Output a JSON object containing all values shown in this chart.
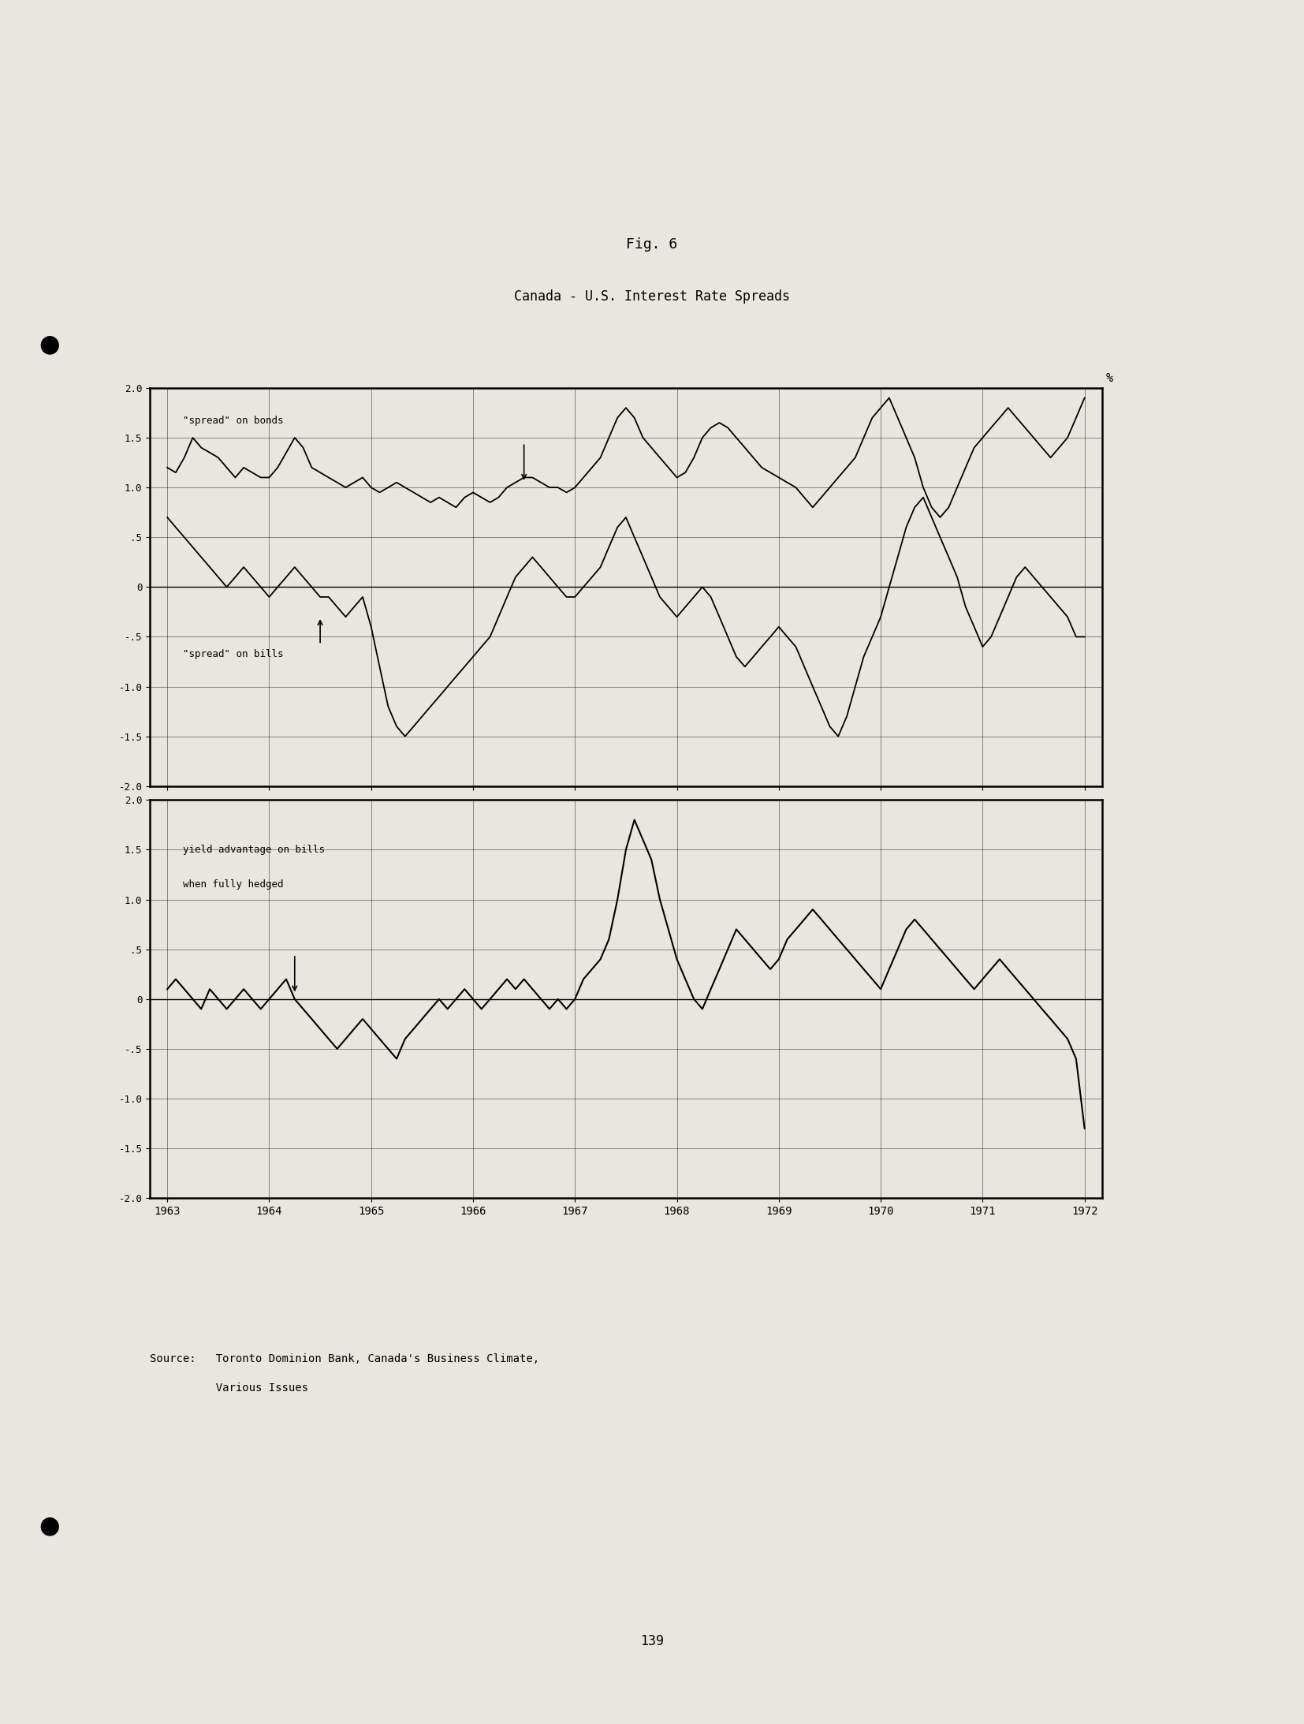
{
  "fig_label": "Fig. 6",
  "title": "Canada - U.S. Interest Rate Spreads",
  "source_line1": "Source:   Toronto Dominion Bank, Canada's Business Climate,",
  "source_line2": "          Various Issues",
  "page_number": "139",
  "background_color": "#e8e6df",
  "x_tick_labels": [
    "1963",
    "1964",
    "1965",
    "1966",
    "1967",
    "1968",
    "1969",
    "1970",
    "1971",
    "1972"
  ],
  "ytick_labels": [
    "2.0",
    "1.5",
    "1.0",
    ".5",
    "0",
    "-.5",
    "-1.0",
    "-1.5",
    "-2.0"
  ],
  "ytick_vals": [
    2.0,
    1.5,
    1.0,
    0.5,
    0.0,
    -0.5,
    -1.0,
    -1.5,
    -2.0
  ],
  "percent_label": "%",
  "label_bonds": "\"spread\" on bonds",
  "label_bills": "\"spread\" on bills",
  "label_hedged_line1": "yield advantage on bills",
  "label_hedged_line2": "when fully hedged",
  "bonds_x": [
    1963.0,
    1963.083,
    1963.167,
    1963.25,
    1963.333,
    1963.417,
    1963.5,
    1963.583,
    1963.667,
    1963.75,
    1963.833,
    1963.917,
    1964.0,
    1964.083,
    1964.167,
    1964.25,
    1964.333,
    1964.417,
    1964.5,
    1964.583,
    1964.667,
    1964.75,
    1964.833,
    1964.917,
    1965.0,
    1965.083,
    1965.167,
    1965.25,
    1965.333,
    1965.417,
    1965.5,
    1965.583,
    1965.667,
    1965.75,
    1965.833,
    1965.917,
    1966.0,
    1966.083,
    1966.167,
    1966.25,
    1966.333,
    1966.417,
    1966.5,
    1966.583,
    1966.667,
    1966.75,
    1966.833,
    1966.917,
    1967.0,
    1967.083,
    1967.167,
    1967.25,
    1967.333,
    1967.417,
    1967.5,
    1967.583,
    1967.667,
    1967.75,
    1967.833,
    1967.917,
    1968.0,
    1968.083,
    1968.167,
    1968.25,
    1968.333,
    1968.417,
    1968.5,
    1968.583,
    1968.667,
    1968.75,
    1968.833,
    1968.917,
    1969.0,
    1969.083,
    1969.167,
    1969.25,
    1969.333,
    1969.417,
    1969.5,
    1969.583,
    1969.667,
    1969.75,
    1969.833,
    1969.917,
    1970.0,
    1970.083,
    1970.167,
    1970.25,
    1970.333,
    1970.417,
    1970.5,
    1970.583,
    1970.667,
    1970.75,
    1970.833,
    1970.917,
    1971.0,
    1971.083,
    1971.167,
    1971.25,
    1971.333,
    1971.417,
    1971.5,
    1971.583,
    1971.667,
    1971.75,
    1971.833,
    1971.917,
    1972.0
  ],
  "bonds_y": [
    1.2,
    1.15,
    1.3,
    1.5,
    1.4,
    1.35,
    1.3,
    1.2,
    1.1,
    1.2,
    1.15,
    1.1,
    1.1,
    1.2,
    1.35,
    1.5,
    1.4,
    1.2,
    1.15,
    1.1,
    1.05,
    1.0,
    1.05,
    1.1,
    1.0,
    0.95,
    1.0,
    1.05,
    1.0,
    0.95,
    0.9,
    0.85,
    0.9,
    0.85,
    0.8,
    0.9,
    0.95,
    0.9,
    0.85,
    0.9,
    1.0,
    1.05,
    1.1,
    1.1,
    1.05,
    1.0,
    1.0,
    0.95,
    1.0,
    1.1,
    1.2,
    1.3,
    1.5,
    1.7,
    1.8,
    1.7,
    1.5,
    1.4,
    1.3,
    1.2,
    1.1,
    1.15,
    1.3,
    1.5,
    1.6,
    1.65,
    1.6,
    1.5,
    1.4,
    1.3,
    1.2,
    1.15,
    1.1,
    1.05,
    1.0,
    0.9,
    0.8,
    0.9,
    1.0,
    1.1,
    1.2,
    1.3,
    1.5,
    1.7,
    1.8,
    1.9,
    1.7,
    1.5,
    1.3,
    1.0,
    0.8,
    0.7,
    0.8,
    1.0,
    1.2,
    1.4,
    1.5,
    1.6,
    1.7,
    1.8,
    1.7,
    1.6,
    1.5,
    1.4,
    1.3,
    1.4,
    1.5,
    1.7,
    1.9
  ],
  "bills_x": [
    1963.0,
    1963.083,
    1963.167,
    1963.25,
    1963.333,
    1963.417,
    1963.5,
    1963.583,
    1963.667,
    1963.75,
    1963.833,
    1963.917,
    1964.0,
    1964.083,
    1964.167,
    1964.25,
    1964.333,
    1964.417,
    1964.5,
    1964.583,
    1964.667,
    1964.75,
    1964.833,
    1964.917,
    1965.0,
    1965.083,
    1965.167,
    1965.25,
    1965.333,
    1965.417,
    1965.5,
    1965.583,
    1965.667,
    1965.75,
    1965.833,
    1965.917,
    1966.0,
    1966.083,
    1966.167,
    1966.25,
    1966.333,
    1966.417,
    1966.5,
    1966.583,
    1966.667,
    1966.75,
    1966.833,
    1966.917,
    1967.0,
    1967.083,
    1967.167,
    1967.25,
    1967.333,
    1967.417,
    1967.5,
    1967.583,
    1967.667,
    1967.75,
    1967.833,
    1967.917,
    1968.0,
    1968.083,
    1968.167,
    1968.25,
    1968.333,
    1968.417,
    1968.5,
    1968.583,
    1968.667,
    1968.75,
    1968.833,
    1968.917,
    1969.0,
    1969.083,
    1969.167,
    1969.25,
    1969.333,
    1969.417,
    1969.5,
    1969.583,
    1969.667,
    1969.75,
    1969.833,
    1969.917,
    1970.0,
    1970.083,
    1970.167,
    1970.25,
    1970.333,
    1970.417,
    1970.5,
    1970.583,
    1970.667,
    1970.75,
    1970.833,
    1970.917,
    1971.0,
    1971.083,
    1971.167,
    1971.25,
    1971.333,
    1971.417,
    1971.5,
    1971.583,
    1971.667,
    1971.75,
    1971.833,
    1971.917,
    1972.0
  ],
  "bills_y": [
    0.7,
    0.6,
    0.5,
    0.4,
    0.3,
    0.2,
    0.1,
    0.0,
    0.1,
    0.2,
    0.1,
    0.0,
    -0.1,
    0.0,
    0.1,
    0.2,
    0.1,
    0.0,
    -0.1,
    -0.1,
    -0.2,
    -0.3,
    -0.2,
    -0.1,
    -0.4,
    -0.8,
    -1.2,
    -1.4,
    -1.5,
    -1.4,
    -1.3,
    -1.2,
    -1.1,
    -1.0,
    -0.9,
    -0.8,
    -0.7,
    -0.6,
    -0.5,
    -0.3,
    -0.1,
    0.1,
    0.2,
    0.3,
    0.2,
    0.1,
    0.0,
    -0.1,
    -0.1,
    0.0,
    0.1,
    0.2,
    0.4,
    0.6,
    0.7,
    0.5,
    0.3,
    0.1,
    -0.1,
    -0.2,
    -0.3,
    -0.2,
    -0.1,
    0.0,
    -0.1,
    -0.3,
    -0.5,
    -0.7,
    -0.8,
    -0.7,
    -0.6,
    -0.5,
    -0.4,
    -0.5,
    -0.6,
    -0.8,
    -1.0,
    -1.2,
    -1.4,
    -1.5,
    -1.3,
    -1.0,
    -0.7,
    -0.5,
    -0.3,
    0.0,
    0.3,
    0.6,
    0.8,
    0.9,
    0.7,
    0.5,
    0.3,
    0.1,
    -0.2,
    -0.4,
    -0.6,
    -0.5,
    -0.3,
    -0.1,
    0.1,
    0.2,
    0.1,
    0.0,
    -0.1,
    -0.2,
    -0.3,
    -0.5,
    -0.5
  ],
  "hedged_x": [
    1963.0,
    1963.083,
    1963.167,
    1963.25,
    1963.333,
    1963.417,
    1963.5,
    1963.583,
    1963.667,
    1963.75,
    1963.833,
    1963.917,
    1964.0,
    1964.083,
    1964.167,
    1964.25,
    1964.333,
    1964.417,
    1964.5,
    1964.583,
    1964.667,
    1964.75,
    1964.833,
    1964.917,
    1965.0,
    1965.083,
    1965.167,
    1965.25,
    1965.333,
    1965.417,
    1965.5,
    1965.583,
    1965.667,
    1965.75,
    1965.833,
    1965.917,
    1966.0,
    1966.083,
    1966.167,
    1966.25,
    1966.333,
    1966.417,
    1966.5,
    1966.583,
    1966.667,
    1966.75,
    1966.833,
    1966.917,
    1967.0,
    1967.083,
    1967.167,
    1967.25,
    1967.333,
    1967.417,
    1967.5,
    1967.583,
    1967.667,
    1967.75,
    1967.833,
    1967.917,
    1968.0,
    1968.083,
    1968.167,
    1968.25,
    1968.333,
    1968.417,
    1968.5,
    1968.583,
    1968.667,
    1968.75,
    1968.833,
    1968.917,
    1969.0,
    1969.083,
    1969.167,
    1969.25,
    1969.333,
    1969.417,
    1969.5,
    1969.583,
    1969.667,
    1969.75,
    1969.833,
    1969.917,
    1970.0,
    1970.083,
    1970.167,
    1970.25,
    1970.333,
    1970.417,
    1970.5,
    1970.583,
    1970.667,
    1970.75,
    1970.833,
    1970.917,
    1971.0,
    1971.083,
    1971.167,
    1971.25,
    1971.333,
    1971.417,
    1971.5,
    1971.583,
    1971.667,
    1971.75,
    1971.833,
    1971.917,
    1972.0
  ],
  "hedged_y": [
    0.1,
    0.2,
    0.1,
    0.0,
    -0.1,
    0.1,
    0.0,
    -0.1,
    0.0,
    0.1,
    0.0,
    -0.1,
    0.0,
    0.1,
    0.2,
    0.0,
    -0.1,
    -0.2,
    -0.3,
    -0.4,
    -0.5,
    -0.4,
    -0.3,
    -0.2,
    -0.3,
    -0.4,
    -0.5,
    -0.6,
    -0.4,
    -0.3,
    -0.2,
    -0.1,
    0.0,
    -0.1,
    0.0,
    0.1,
    0.0,
    -0.1,
    0.0,
    0.1,
    0.2,
    0.1,
    0.2,
    0.1,
    0.0,
    -0.1,
    0.0,
    -0.1,
    0.0,
    0.2,
    0.3,
    0.4,
    0.6,
    1.0,
    1.5,
    1.8,
    1.6,
    1.4,
    1.0,
    0.7,
    0.4,
    0.2,
    0.0,
    -0.1,
    0.1,
    0.3,
    0.5,
    0.7,
    0.6,
    0.5,
    0.4,
    0.3,
    0.4,
    0.6,
    0.7,
    0.8,
    0.9,
    0.8,
    0.7,
    0.6,
    0.5,
    0.4,
    0.3,
    0.2,
    0.1,
    0.3,
    0.5,
    0.7,
    0.8,
    0.7,
    0.6,
    0.5,
    0.4,
    0.3,
    0.2,
    0.1,
    0.2,
    0.3,
    0.4,
    0.3,
    0.2,
    0.1,
    0.0,
    -0.1,
    -0.2,
    -0.3,
    -0.4,
    -0.6,
    -1.3
  ]
}
